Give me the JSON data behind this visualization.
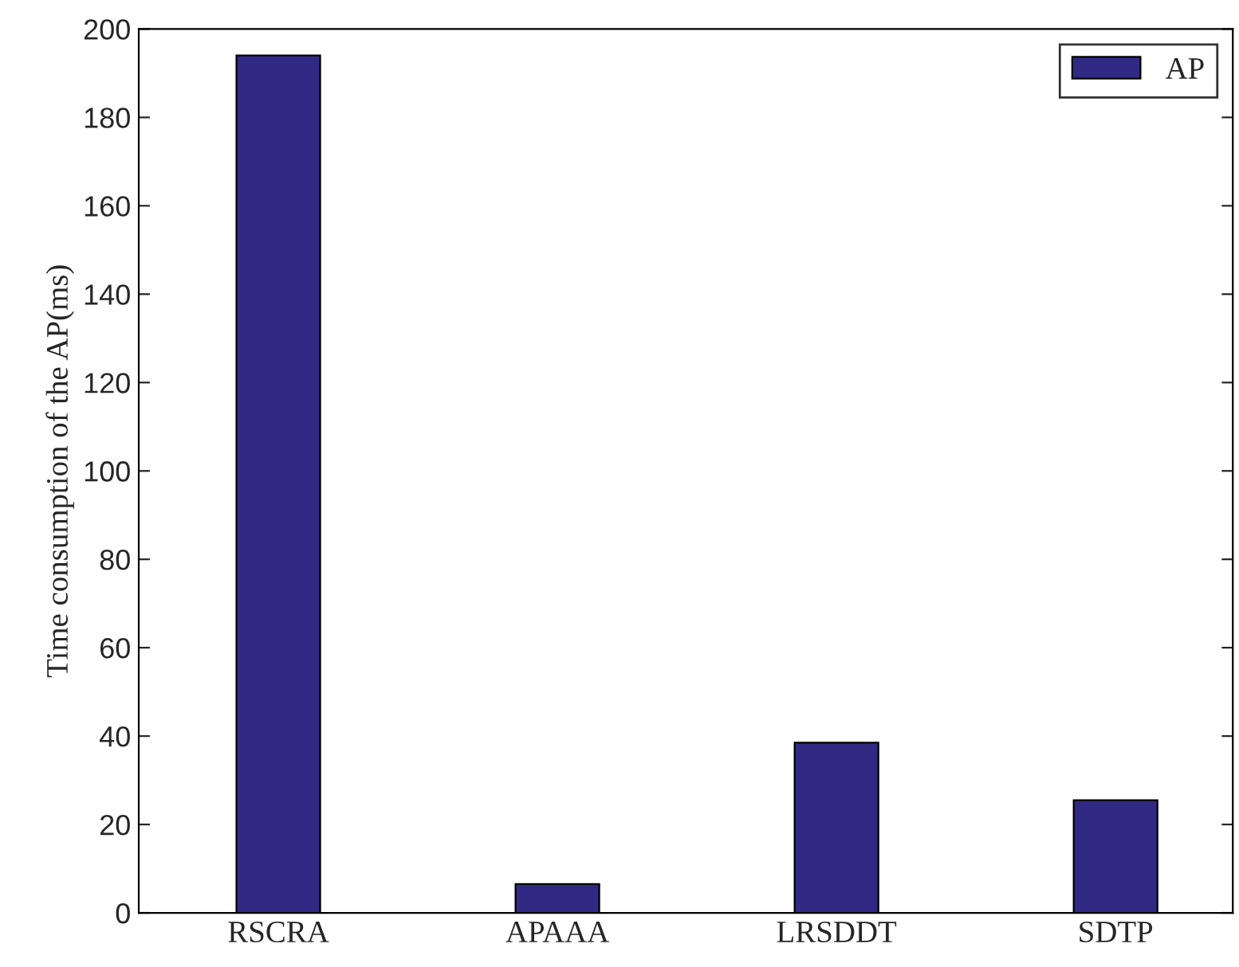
{
  "chart_data": {
    "type": "bar",
    "categories": [
      "RSCRA",
      "APAAA",
      "LRSDDT",
      "SDTP"
    ],
    "series": [
      {
        "name": "AP",
        "color": "#312a84",
        "values": [
          194,
          6.5,
          38.5,
          25.5
        ]
      }
    ],
    "ylabel": "Time consumption of the AP(ms)",
    "ylim": [
      0,
      200
    ],
    "yticks": [
      0,
      20,
      40,
      60,
      80,
      100,
      120,
      140,
      160,
      180,
      200
    ],
    "grid": false,
    "legend": "top right"
  }
}
